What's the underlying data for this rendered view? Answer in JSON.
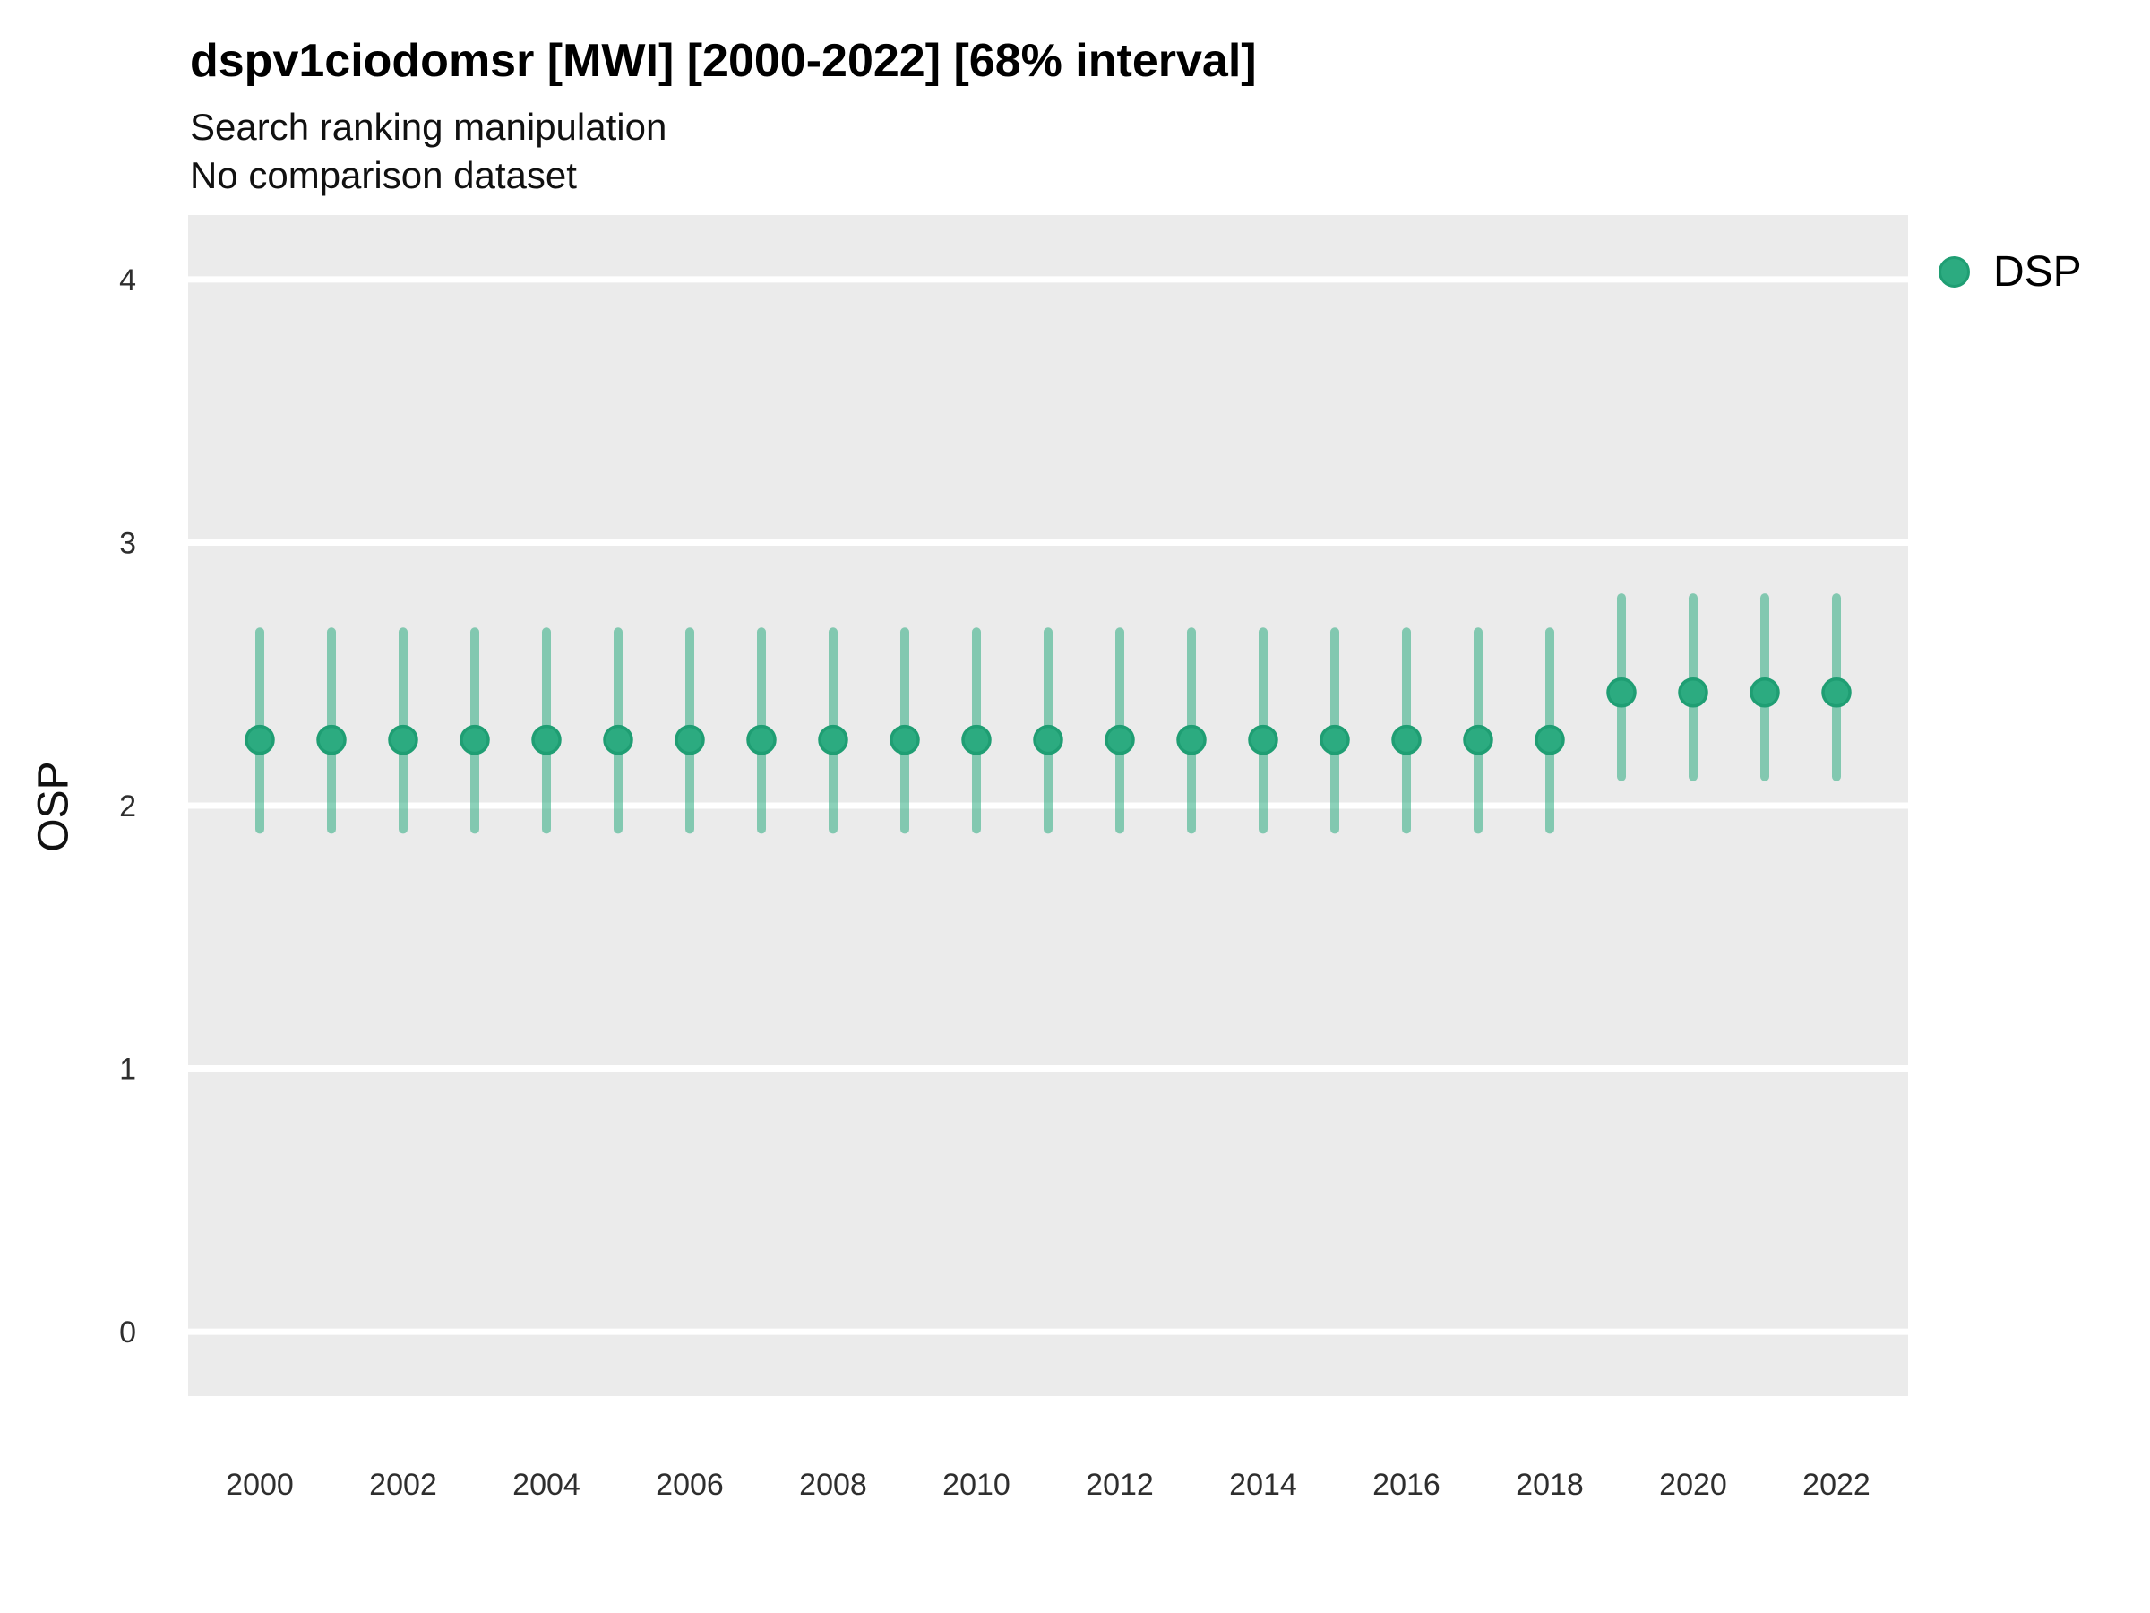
{
  "header": {
    "title": "dspv1ciodomsr [MWI] [2000-2022] [68% interval]",
    "subtitle1": "Search ranking manipulation",
    "subtitle2": "No comparison dataset"
  },
  "legend": {
    "items": [
      {
        "label": "DSP",
        "color": "#2cab80",
        "border_color": "#1f9e73"
      }
    ]
  },
  "chart_data": {
    "type": "pointrange",
    "title": "dspv1ciodomsr [MWI] [2000-2022] [68% interval]",
    "subtitle": [
      "Search ranking manipulation",
      "No comparison dataset"
    ],
    "interval": "68%",
    "xlabel": "",
    "ylabel": "OSP",
    "x": [
      2000,
      2001,
      2002,
      2003,
      2004,
      2005,
      2006,
      2007,
      2008,
      2009,
      2010,
      2011,
      2012,
      2013,
      2014,
      2015,
      2016,
      2017,
      2018,
      2019,
      2020,
      2021,
      2022
    ],
    "series": [
      {
        "name": "DSP",
        "mid": [
          2.25,
          2.25,
          2.25,
          2.25,
          2.25,
          2.25,
          2.25,
          2.25,
          2.25,
          2.25,
          2.25,
          2.25,
          2.25,
          2.25,
          2.25,
          2.25,
          2.25,
          2.25,
          2.25,
          2.43,
          2.43,
          2.43,
          2.43
        ],
        "lo": [
          1.91,
          1.91,
          1.91,
          1.91,
          1.91,
          1.91,
          1.91,
          1.91,
          1.91,
          1.91,
          1.91,
          1.91,
          1.91,
          1.91,
          1.91,
          1.91,
          1.91,
          1.91,
          1.91,
          2.11,
          2.11,
          2.11,
          2.11
        ],
        "hi": [
          2.66,
          2.66,
          2.66,
          2.66,
          2.66,
          2.66,
          2.66,
          2.66,
          2.66,
          2.66,
          2.66,
          2.66,
          2.66,
          2.66,
          2.66,
          2.66,
          2.66,
          2.66,
          2.66,
          2.79,
          2.79,
          2.79,
          2.79
        ]
      }
    ],
    "x_ticks": [
      2000,
      2002,
      2004,
      2006,
      2008,
      2010,
      2012,
      2014,
      2016,
      2018,
      2020,
      2022
    ],
    "y_ticks": [
      0,
      1,
      2,
      3,
      4
    ],
    "xlim": [
      1999,
      2023
    ],
    "ylim": [
      -0.245,
      4.245
    ],
    "grid": "horizontal-major-only",
    "legend_position": "right-top",
    "colors": {
      "panel_bg": "#EBEBEB",
      "gridline": "#FFFFFF",
      "range": "#2cab80",
      "range_opacity": 0.55,
      "point_fill": "#2cab80",
      "point_stroke": "#1f9e73",
      "axis_text": "#2e2e2e"
    }
  }
}
